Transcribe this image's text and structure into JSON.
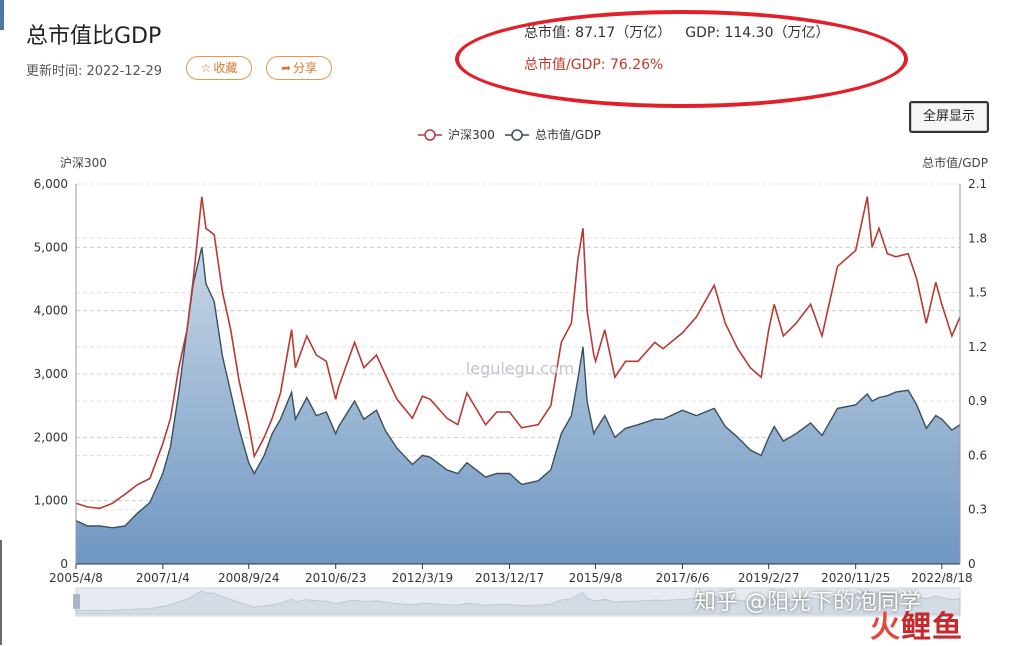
{
  "page": {
    "title": "总市值比GDP",
    "update_label": "更新时间: 2022-12-29",
    "collect_label": "收藏",
    "share_label": "分享",
    "fullscreen_label": "全屏显示"
  },
  "stats": {
    "total_mv": "总市值: 87.17（万亿）",
    "gdp": "GDP: 114.30（万亿）",
    "ratio": "总市值/GDP: 76.26%"
  },
  "watermarks": {
    "center": "legulegu.com",
    "zhihu": "知乎 @阳光下的泡同学",
    "brand_a": "火",
    "brand_b": "鲤鱼"
  },
  "colors": {
    "hs300": "#b83a33",
    "ratio_line": "#3b4e5e",
    "area_top": "#c8d7e6",
    "area_bottom": "#6f97c2"
  },
  "chart_data": {
    "type": "line",
    "legend": [
      "沪深300",
      "总市值/GDP"
    ],
    "legend_position": "top-center",
    "y_left_label": "沪深300",
    "y_right_label": "总市值/GDP",
    "y_left_range": [
      0,
      6000
    ],
    "y_left_ticks": [
      "0",
      "1,000",
      "2,000",
      "3,000",
      "4,000",
      "5,000",
      "6,000"
    ],
    "y_right_range": [
      0,
      2.1
    ],
    "y_right_ticks": [
      "0",
      "0.3",
      "0.6",
      "0.9",
      "1.2",
      "1.5",
      "1.8",
      "2.1"
    ],
    "x_range": [
      "2005-04-08",
      "2022-12-29"
    ],
    "x_ticks": [
      "2005/4/8",
      "2007/1/4",
      "2008/9/24",
      "2010/6/23",
      "2012/3/19",
      "2013/12/17",
      "2015/9/8",
      "2017/6/6",
      "2019/2/27",
      "2020/11/25",
      "2022/8/18"
    ],
    "grid": "horizontal dashed",
    "series": [
      {
        "name": "沪深300",
        "x": [
          "2005-04-08",
          "2005-07-01",
          "2005-10-01",
          "2006-01-01",
          "2006-04-01",
          "2006-07-01",
          "2006-10-01",
          "2007-01-04",
          "2007-03-01",
          "2007-05-01",
          "2007-07-01",
          "2007-08-15",
          "2007-10-16",
          "2007-11-15",
          "2008-01-15",
          "2008-03-15",
          "2008-05-15",
          "2008-07-15",
          "2008-09-24",
          "2008-11-04",
          "2009-01-15",
          "2009-03-15",
          "2009-05-15",
          "2009-08-04",
          "2009-09-01",
          "2009-11-23",
          "2010-02-01",
          "2010-04-15",
          "2010-06-23",
          "2010-07-15",
          "2010-11-08",
          "2011-01-15",
          "2011-04-18",
          "2011-06-20",
          "2011-09-15",
          "2012-01-06",
          "2012-03-19",
          "2012-05-15",
          "2012-09-15",
          "2012-12-03",
          "2013-02-08",
          "2013-06-25",
          "2013-09-15",
          "2013-12-17",
          "2014-03-15",
          "2014-07-15",
          "2014-10-15",
          "2014-12-31",
          "2015-03-15",
          "2015-05-01",
          "2015-06-08",
          "2015-07-08",
          "2015-08-26",
          "2015-09-08",
          "2015-11-15",
          "2016-01-28",
          "2016-04-15",
          "2016-07-15",
          "2016-11-15",
          "2017-01-15",
          "2017-06-06",
          "2017-09-15",
          "2018-01-24",
          "2018-04-15",
          "2018-07-15",
          "2018-10-15",
          "2019-01-03",
          "2019-02-27",
          "2019-04-08",
          "2019-06-15",
          "2019-09-15",
          "2019-12-31",
          "2020-03-23",
          "2020-07-15",
          "2020-11-25",
          "2021-02-18",
          "2021-03-25",
          "2021-05-15",
          "2021-07-15",
          "2021-09-15",
          "2021-12-15",
          "2022-02-15",
          "2022-04-26",
          "2022-07-05",
          "2022-08-18",
          "2022-10-31",
          "2022-12-29"
        ],
        "values": [
          960,
          900,
          880,
          960,
          1100,
          1250,
          1350,
          1900,
          2300,
          3100,
          3700,
          4500,
          5800,
          5300,
          5200,
          4300,
          3700,
          2900,
          2200,
          1700,
          2000,
          2300,
          2700,
          3700,
          3100,
          3600,
          3300,
          3200,
          2600,
          2800,
          3500,
          3100,
          3300,
          3000,
          2600,
          2300,
          2650,
          2600,
          2300,
          2200,
          2700,
          2200,
          2400,
          2400,
          2150,
          2200,
          2500,
          3500,
          3800,
          4800,
          5300,
          4000,
          3300,
          3200,
          3700,
          2950,
          3200,
          3200,
          3500,
          3400,
          3650,
          3900,
          4400,
          3800,
          3400,
          3100,
          2950,
          3700,
          4100,
          3600,
          3800,
          4100,
          3600,
          4700,
          4950,
          5800,
          5000,
          5300,
          4900,
          4850,
          4900,
          4500,
          3800,
          4450,
          4100,
          3600,
          3900
        ]
      },
      {
        "name": "总市值/GDP",
        "x": [
          "2005-04-08",
          "2005-07-01",
          "2005-10-01",
          "2006-01-01",
          "2006-04-01",
          "2006-07-01",
          "2006-10-01",
          "2007-01-04",
          "2007-03-01",
          "2007-05-01",
          "2007-07-01",
          "2007-08-15",
          "2007-10-16",
          "2007-11-15",
          "2008-01-15",
          "2008-03-15",
          "2008-05-15",
          "2008-07-15",
          "2008-09-24",
          "2008-11-04",
          "2009-01-15",
          "2009-03-15",
          "2009-05-15",
          "2009-08-04",
          "2009-09-01",
          "2009-11-23",
          "2010-02-01",
          "2010-04-15",
          "2010-06-23",
          "2010-07-15",
          "2010-11-08",
          "2011-01-15",
          "2011-04-18",
          "2011-06-20",
          "2011-09-15",
          "2012-01-06",
          "2012-03-19",
          "2012-05-15",
          "2012-09-15",
          "2012-12-03",
          "2013-02-08",
          "2013-06-25",
          "2013-09-15",
          "2013-12-17",
          "2014-03-15",
          "2014-07-15",
          "2014-10-15",
          "2014-12-31",
          "2015-03-15",
          "2015-05-01",
          "2015-06-08",
          "2015-07-08",
          "2015-08-26",
          "2015-09-08",
          "2015-11-15",
          "2016-01-28",
          "2016-04-15",
          "2016-07-15",
          "2016-11-15",
          "2017-01-15",
          "2017-06-06",
          "2017-09-15",
          "2018-01-24",
          "2018-04-15",
          "2018-07-15",
          "2018-10-15",
          "2019-01-03",
          "2019-02-27",
          "2019-04-08",
          "2019-06-15",
          "2019-09-15",
          "2019-12-31",
          "2020-03-23",
          "2020-07-15",
          "2020-11-25",
          "2021-02-18",
          "2021-03-25",
          "2021-05-15",
          "2021-07-15",
          "2021-09-15",
          "2021-12-15",
          "2022-02-15",
          "2022-04-26",
          "2022-07-05",
          "2022-08-18",
          "2022-10-31",
          "2022-12-29"
        ],
        "values": [
          0.24,
          0.21,
          0.21,
          0.2,
          0.21,
          0.28,
          0.34,
          0.5,
          0.65,
          0.95,
          1.3,
          1.55,
          1.75,
          1.55,
          1.45,
          1.15,
          0.95,
          0.75,
          0.56,
          0.5,
          0.6,
          0.72,
          0.8,
          0.95,
          0.8,
          0.92,
          0.82,
          0.84,
          0.72,
          0.76,
          0.9,
          0.8,
          0.85,
          0.74,
          0.64,
          0.55,
          0.6,
          0.59,
          0.52,
          0.5,
          0.56,
          0.48,
          0.5,
          0.5,
          0.44,
          0.46,
          0.52,
          0.72,
          0.82,
          1.02,
          1.2,
          0.9,
          0.72,
          0.74,
          0.82,
          0.7,
          0.75,
          0.77,
          0.8,
          0.8,
          0.85,
          0.82,
          0.86,
          0.76,
          0.7,
          0.63,
          0.6,
          0.7,
          0.76,
          0.68,
          0.72,
          0.78,
          0.71,
          0.86,
          0.88,
          0.94,
          0.9,
          0.92,
          0.93,
          0.95,
          0.96,
          0.88,
          0.75,
          0.82,
          0.8,
          0.74,
          0.77
        ]
      }
    ]
  }
}
